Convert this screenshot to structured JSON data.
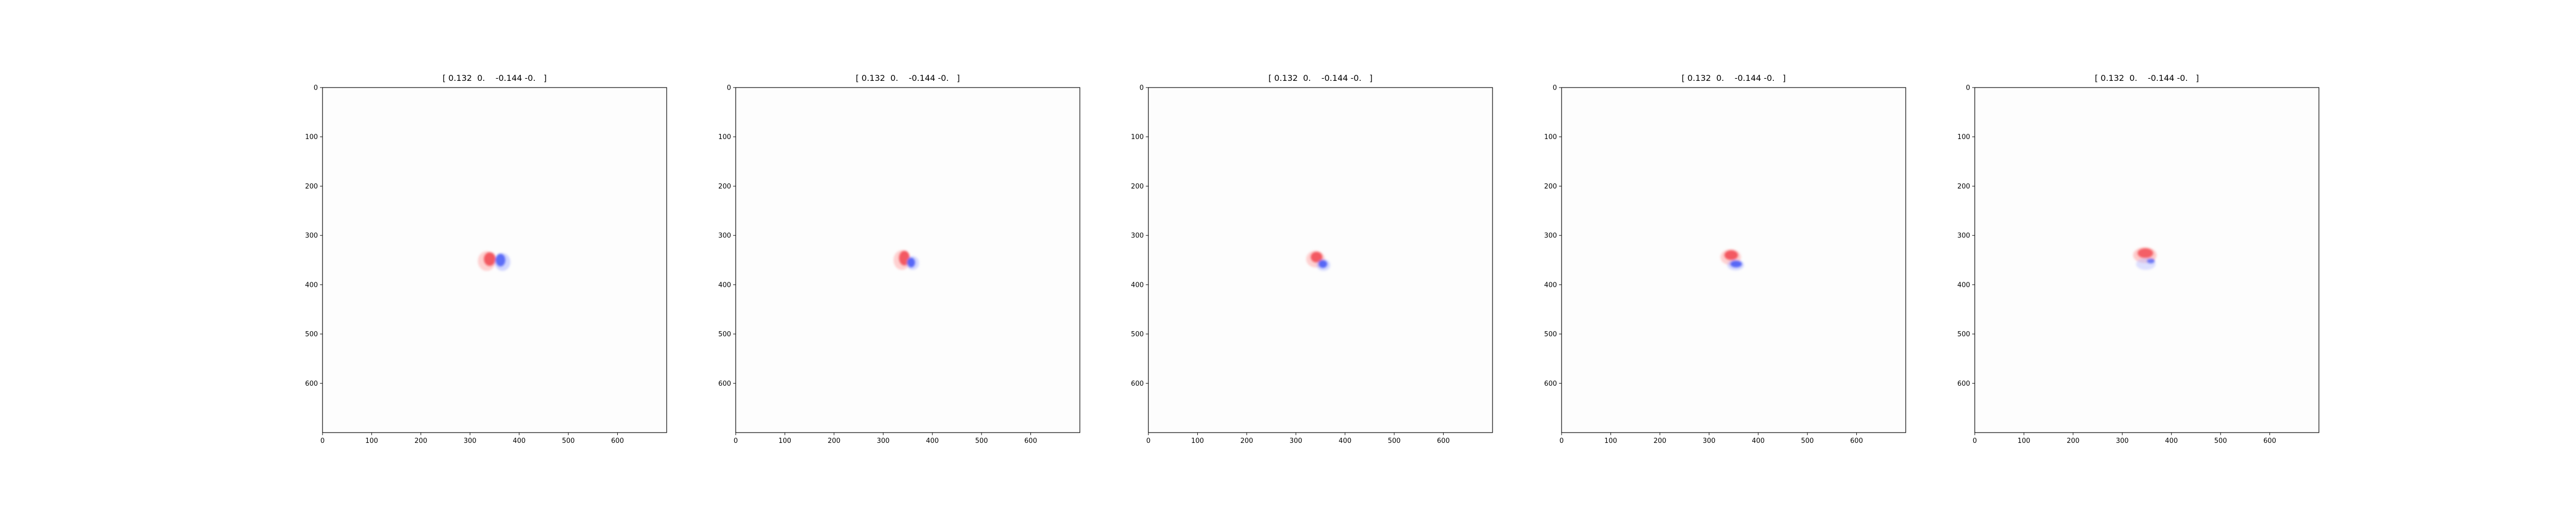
{
  "chart_data": [
    {
      "type": "heatmap",
      "title": "[ 0.132  0.    -0.144 -0.   ]",
      "xlim": [
        0,
        700
      ],
      "ylim": [
        700,
        0
      ],
      "x_ticks": [
        "0",
        "100",
        "200",
        "300",
        "400",
        "500",
        "600"
      ],
      "y_ticks": [
        "0",
        "100",
        "200",
        "300",
        "400",
        "500",
        "600"
      ],
      "blobs": [
        {
          "color": "#e8192a",
          "cx": 340,
          "cy": 348,
          "rx": 12,
          "ry": 14,
          "opacity": 0.95
        },
        {
          "color": "#ff9a9a",
          "cx": 334,
          "cy": 352,
          "rx": 18,
          "ry": 20,
          "opacity": 0.45
        },
        {
          "color": "#2036f0",
          "cx": 362,
          "cy": 350,
          "rx": 10,
          "ry": 13,
          "opacity": 0.95
        },
        {
          "color": "#9aa4ff",
          "cx": 366,
          "cy": 354,
          "rx": 16,
          "ry": 18,
          "opacity": 0.45
        }
      ]
    },
    {
      "type": "heatmap",
      "title": "[ 0.132  0.    -0.144 -0.   ]",
      "xlim": [
        0,
        700
      ],
      "ylim": [
        700,
        0
      ],
      "x_ticks": [
        "0",
        "100",
        "200",
        "300",
        "400",
        "500",
        "600"
      ],
      "y_ticks": [
        "0",
        "100",
        "200",
        "300",
        "400",
        "500",
        "600"
      ],
      "blobs": [
        {
          "color": "#e8192a",
          "cx": 343,
          "cy": 346,
          "rx": 11,
          "ry": 15,
          "opacity": 0.95
        },
        {
          "color": "#ff9a9a",
          "cx": 338,
          "cy": 350,
          "rx": 17,
          "ry": 20,
          "opacity": 0.45
        },
        {
          "color": "#2036f0",
          "cx": 357,
          "cy": 355,
          "rx": 8,
          "ry": 10,
          "opacity": 0.95
        },
        {
          "color": "#9aa4ff",
          "cx": 360,
          "cy": 356,
          "rx": 13,
          "ry": 14,
          "opacity": 0.4
        }
      ]
    },
    {
      "type": "heatmap",
      "title": "[ 0.132  0.    -0.144 -0.   ]",
      "xlim": [
        0,
        700
      ],
      "ylim": [
        700,
        0
      ],
      "x_ticks": [
        "0",
        "100",
        "200",
        "300",
        "400",
        "500",
        "600"
      ],
      "y_ticks": [
        "0",
        "100",
        "200",
        "300",
        "400",
        "500",
        "600"
      ],
      "blobs": [
        {
          "color": "#e8192a",
          "cx": 342,
          "cy": 344,
          "rx": 12,
          "ry": 11,
          "opacity": 0.95
        },
        {
          "color": "#ff9a9a",
          "cx": 340,
          "cy": 348,
          "rx": 19,
          "ry": 17,
          "opacity": 0.45
        },
        {
          "color": "#2036f0",
          "cx": 355,
          "cy": 358,
          "rx": 9,
          "ry": 8,
          "opacity": 0.95
        },
        {
          "color": "#9aa4ff",
          "cx": 356,
          "cy": 360,
          "rx": 14,
          "ry": 12,
          "opacity": 0.4
        }
      ]
    },
    {
      "type": "heatmap",
      "title": "[ 0.132  0.    -0.144 -0.   ]",
      "xlim": [
        0,
        700
      ],
      "ylim": [
        700,
        0
      ],
      "x_ticks": [
        "0",
        "100",
        "200",
        "300",
        "400",
        "500",
        "600"
      ],
      "y_ticks": [
        "0",
        "100",
        "200",
        "300",
        "400",
        "500",
        "600"
      ],
      "blobs": [
        {
          "color": "#e8192a",
          "cx": 345,
          "cy": 340,
          "rx": 14,
          "ry": 10,
          "opacity": 0.95
        },
        {
          "color": "#ff9a9a",
          "cx": 344,
          "cy": 344,
          "rx": 21,
          "ry": 16,
          "opacity": 0.45
        },
        {
          "color": "#2036f0",
          "cx": 355,
          "cy": 358,
          "rx": 12,
          "ry": 7,
          "opacity": 0.95
        },
        {
          "color": "#9aa4ff",
          "cx": 354,
          "cy": 360,
          "rx": 17,
          "ry": 11,
          "opacity": 0.4
        }
      ]
    },
    {
      "type": "heatmap",
      "title": "[ 0.132  0.    -0.144 -0.   ]",
      "xlim": [
        0,
        700
      ],
      "ylim": [
        700,
        0
      ],
      "x_ticks": [
        "0",
        "100",
        "200",
        "300",
        "400",
        "500",
        "600"
      ],
      "y_ticks": [
        "0",
        "100",
        "200",
        "300",
        "400",
        "500",
        "600"
      ],
      "blobs": [
        {
          "color": "#e8192a",
          "cx": 347,
          "cy": 336,
          "rx": 16,
          "ry": 10,
          "opacity": 0.95
        },
        {
          "color": "#ff9a9a",
          "cx": 346,
          "cy": 340,
          "rx": 24,
          "ry": 16,
          "opacity": 0.5
        },
        {
          "color": "#2036f0",
          "cx": 358,
          "cy": 352,
          "rx": 8,
          "ry": 5,
          "opacity": 0.9
        },
        {
          "color": "#b6bcff",
          "cx": 348,
          "cy": 358,
          "rx": 20,
          "ry": 12,
          "opacity": 0.45
        }
      ]
    }
  ]
}
